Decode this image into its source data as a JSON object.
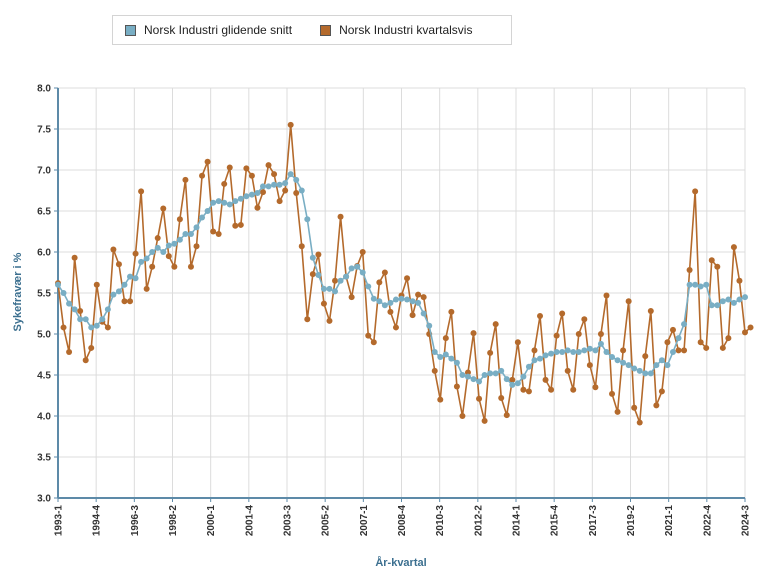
{
  "legend": {
    "series0": "Norsk Industri glidende snitt",
    "series1": "Norsk Industri kvartalsvis"
  },
  "colors": {
    "series0": "#79aec4",
    "series1": "#b46a2c",
    "axis": "#5d8aa8",
    "grid": "#dcdcdc"
  },
  "chart_data": {
    "type": "line",
    "xlabel": "År-kvartal",
    "ylabel": "Sykefravær i %",
    "ylim": [
      3.0,
      8.0
    ],
    "yticks": [
      "3.0",
      "3.5",
      "4.0",
      "4.5",
      "5.0",
      "5.5",
      "6.0",
      "6.5",
      "7.0",
      "7.5",
      "8.0"
    ],
    "grid": true,
    "legend_position": "top-left",
    "x_tick_labels": [
      "1993-1",
      "1994-4",
      "1996-3",
      "1998-2",
      "2000-1",
      "2001-4",
      "2003-3",
      "2005-2",
      "2007-1",
      "2008-4",
      "2010-3",
      "2012-2",
      "2014-1",
      "2015-4",
      "2017-3",
      "2019-2",
      "2021-1",
      "2022-4",
      "2024-3"
    ],
    "x_start": "1993-1",
    "x_end": "2024-3",
    "series": [
      {
        "name": "Norsk Industri glidende snitt",
        "values": [
          5.6,
          5.5,
          5.37,
          5.3,
          5.18,
          5.18,
          5.08,
          5.1,
          5.18,
          5.3,
          5.48,
          5.52,
          5.6,
          5.7,
          5.68,
          5.88,
          5.92,
          6.0,
          6.05,
          6.0,
          6.08,
          6.1,
          6.15,
          6.22,
          6.22,
          6.3,
          6.42,
          6.5,
          6.6,
          6.62,
          6.6,
          6.58,
          6.62,
          6.65,
          6.68,
          6.7,
          6.72,
          6.8,
          6.8,
          6.82,
          6.82,
          6.84,
          6.95,
          6.88,
          6.75,
          6.4,
          5.93,
          5.72,
          5.55,
          5.55,
          5.52,
          5.65,
          5.7,
          5.8,
          5.82,
          5.75,
          5.58,
          5.43,
          5.4,
          5.35,
          5.38,
          5.42,
          5.43,
          5.42,
          5.4,
          5.38,
          5.25,
          5.1,
          4.78,
          4.72,
          4.75,
          4.7,
          4.65,
          4.5,
          4.48,
          4.45,
          4.42,
          4.5,
          4.52,
          4.52,
          4.55,
          4.45,
          4.38,
          4.4,
          4.48,
          4.6,
          4.68,
          4.7,
          4.74,
          4.76,
          4.78,
          4.78,
          4.8,
          4.78,
          4.78,
          4.8,
          4.82,
          4.8,
          4.88,
          4.78,
          4.72,
          4.68,
          4.65,
          4.62,
          4.58,
          4.55,
          4.52,
          4.52,
          4.62,
          4.68,
          4.62,
          4.78,
          4.95,
          5.12,
          5.6,
          5.6,
          5.58,
          5.6,
          5.35,
          5.35,
          5.4,
          5.42,
          5.38,
          5.42,
          5.45
        ]
      },
      {
        "name": "Norsk Industri kvartalsvis",
        "values": [
          5.62,
          5.08,
          4.78,
          5.93,
          5.28,
          4.68,
          4.83,
          5.6,
          5.15,
          5.08,
          6.03,
          5.85,
          5.4,
          5.4,
          5.98,
          6.74,
          5.55,
          5.82,
          6.17,
          6.53,
          5.95,
          5.82,
          6.4,
          6.88,
          5.82,
          6.07,
          6.93,
          7.1,
          6.25,
          6.22,
          6.83,
          7.03,
          6.32,
          6.33,
          7.02,
          6.93,
          6.54,
          6.73,
          7.06,
          6.95,
          6.62,
          6.75,
          7.55,
          6.72,
          6.07,
          5.18,
          5.73,
          5.97,
          5.37,
          5.16,
          5.65,
          6.43,
          5.7,
          5.45,
          5.83,
          6.0,
          4.98,
          4.9,
          5.63,
          5.75,
          5.27,
          5.08,
          5.47,
          5.68,
          5.23,
          5.48,
          5.45,
          5.0,
          4.55,
          4.2,
          4.95,
          5.27,
          4.36,
          4.0,
          4.53,
          5.01,
          4.21,
          3.94,
          4.77,
          5.12,
          4.22,
          4.01,
          4.44,
          4.9,
          4.32,
          4.3,
          4.8,
          5.22,
          4.44,
          4.32,
          4.98,
          5.25,
          4.55,
          4.32,
          5.0,
          5.18,
          4.62,
          4.35,
          5.0,
          5.47,
          4.27,
          4.05,
          4.8,
          5.4,
          4.1,
          3.92,
          4.73,
          5.28,
          4.13,
          4.3,
          4.9,
          5.05,
          4.8,
          4.8,
          5.78,
          6.74,
          4.9,
          4.83,
          5.9,
          5.82,
          4.83,
          4.95,
          6.06,
          5.65,
          5.02,
          5.08
        ]
      }
    ]
  }
}
